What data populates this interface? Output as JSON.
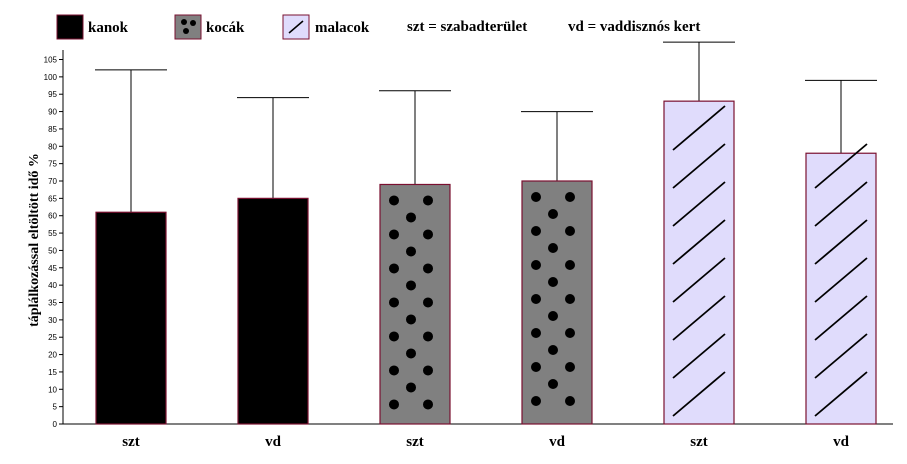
{
  "legend": {
    "items": [
      {
        "label": "kanok",
        "pattern": "solid"
      },
      {
        "label": "kocák",
        "pattern": "dots"
      },
      {
        "label": "malacok",
        "pattern": "hatch"
      }
    ],
    "notes": [
      "szt = szabadterület",
      "vd = vaddisznós kert"
    ]
  },
  "colors": {
    "kanok": "#000000",
    "kocak": "#808080",
    "malacok": "#e0dcfc",
    "bar_border": "#7a1030",
    "axis": "#000000"
  },
  "chart_data": {
    "type": "bar",
    "ylabel": "táplálkozással eltöltött idő %",
    "xlabel": "",
    "ylim": [
      0,
      105
    ],
    "yticks": [
      0,
      5,
      10,
      15,
      20,
      25,
      30,
      35,
      40,
      45,
      50,
      55,
      60,
      65,
      70,
      75,
      80,
      85,
      90,
      95,
      100,
      105
    ],
    "categories": [
      "szt",
      "vd",
      "szt",
      "vd",
      "szt",
      "vd"
    ],
    "series": [
      {
        "name": "kanok",
        "values": [
          61,
          65,
          null,
          null,
          null,
          null
        ],
        "error_upper": [
          102,
          94,
          null,
          null,
          null,
          null
        ]
      },
      {
        "name": "kocák",
        "values": [
          null,
          null,
          69,
          70,
          null,
          null
        ],
        "error_upper": [
          null,
          null,
          96,
          90,
          null,
          null
        ]
      },
      {
        "name": "malacok",
        "values": [
          null,
          null,
          null,
          null,
          93,
          78
        ],
        "error_upper": [
          null,
          null,
          null,
          null,
          110,
          99
        ]
      }
    ],
    "grid": false,
    "legend_position": "top"
  }
}
